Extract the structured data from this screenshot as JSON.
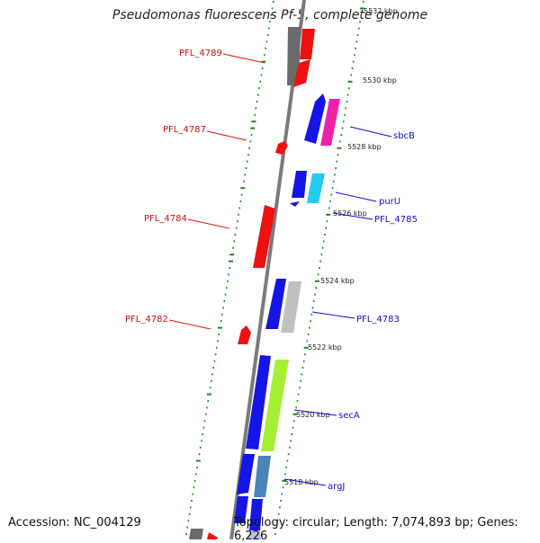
{
  "title": "Pseudomonas fluorescens Pf-5, complete genome",
  "footer": {
    "accession": "Accession: NC_004129",
    "topology": "Topology: circular; Length: 7,074,893 bp; Genes: 6,226"
  },
  "colors": {
    "backbone": "#7a7a7a",
    "tick": "#1a8a1a",
    "forward_label": "#1010cc",
    "reverse_label": "#cc1010"
  },
  "scale_ticks": [
    {
      "label": "5532 kbp",
      "kbp": 5532
    },
    {
      "label": "5530 kbp",
      "kbp": 5530
    },
    {
      "label": "5528 kbp",
      "kbp": 5528
    },
    {
      "label": "5526 kbp",
      "kbp": 5526
    },
    {
      "label": "5524 kbp",
      "kbp": 5524
    },
    {
      "label": "5522 kbp",
      "kbp": 5522
    },
    {
      "label": "5520 kbp",
      "kbp": 5520
    },
    {
      "label": "5518 kbp",
      "kbp": 5518
    }
  ],
  "gene_labels": {
    "reverse": [
      "PFL_4789",
      "PFL_4787",
      "PFL_4784",
      "PFL_4782"
    ],
    "forward": [
      "sbcB",
      "purU",
      "PFL_4785",
      "PFL_4783",
      "secA",
      "argJ"
    ]
  }
}
